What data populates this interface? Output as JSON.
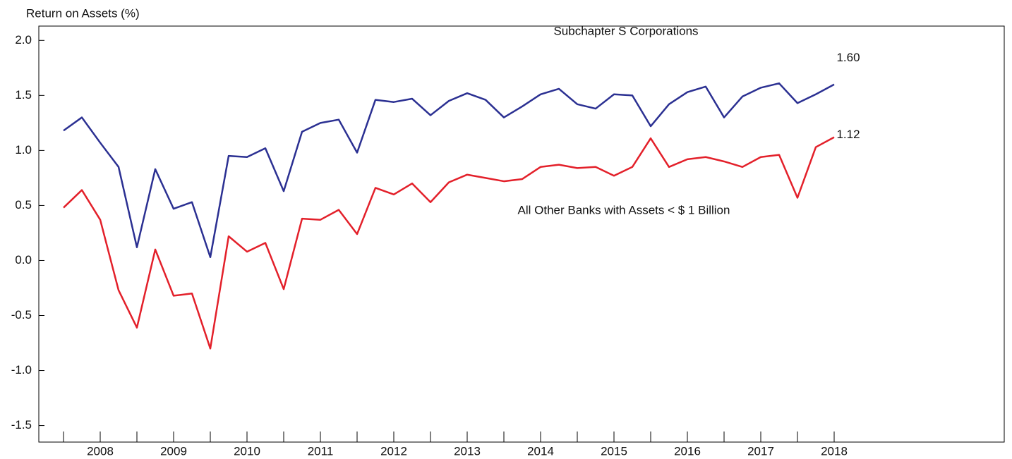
{
  "chart_data": {
    "type": "line",
    "y_axis_label": "Return on Assets (%)",
    "categories": [
      null,
      null,
      "2008",
      null,
      null,
      null,
      "2009",
      null,
      null,
      null,
      "2010",
      null,
      null,
      null,
      "2011",
      null,
      null,
      null,
      "2012",
      null,
      null,
      null,
      "2013",
      null,
      null,
      null,
      "2014",
      null,
      null,
      null,
      "2015",
      null,
      null,
      null,
      "2016",
      null,
      null,
      null,
      "2017",
      null,
      null,
      null,
      "2018"
    ],
    "series": [
      {
        "name": "Subchapter S Corporations",
        "color": "#2b3092",
        "values": [
          1.18,
          1.3,
          1.07,
          0.85,
          0.12,
          0.83,
          0.47,
          0.53,
          0.03,
          0.95,
          0.94,
          1.02,
          0.63,
          1.17,
          1.25,
          1.28,
          0.98,
          1.46,
          1.44,
          1.47,
          1.32,
          1.45,
          1.52,
          1.46,
          1.3,
          1.4,
          1.51,
          1.56,
          1.42,
          1.38,
          1.51,
          1.5,
          1.22,
          1.42,
          1.53,
          1.58,
          1.3,
          1.49,
          1.57,
          1.61,
          1.43,
          1.51,
          1.6
        ],
        "value_labels": [
          null,
          null,
          null,
          null,
          null,
          null,
          null,
          null,
          null,
          null,
          null,
          null,
          null,
          null,
          null,
          null,
          null,
          null,
          null,
          null,
          null,
          null,
          null,
          null,
          null,
          null,
          null,
          null,
          null,
          null,
          null,
          null,
          null,
          null,
          null,
          null,
          null,
          null,
          null,
          null,
          null,
          null,
          "1.60"
        ]
      },
      {
        "name": "All Other Banks with Assets < $ 1 Billion",
        "color": "#e3202a",
        "values": [
          0.48,
          0.64,
          0.37,
          -0.27,
          -0.61,
          0.1,
          -0.32,
          -0.3,
          -0.8,
          0.22,
          0.08,
          0.16,
          -0.26,
          0.38,
          0.37,
          0.46,
          0.24,
          0.66,
          0.6,
          0.7,
          0.53,
          0.71,
          0.78,
          0.75,
          0.72,
          0.74,
          0.85,
          0.87,
          0.84,
          0.85,
          0.77,
          0.85,
          1.11,
          0.85,
          0.92,
          0.94,
          0.9,
          0.85,
          0.94,
          0.96,
          0.57,
          1.03,
          1.12
        ],
        "value_labels": [
          null,
          null,
          null,
          null,
          null,
          null,
          null,
          null,
          null,
          null,
          null,
          null,
          null,
          null,
          null,
          null,
          null,
          null,
          null,
          null,
          null,
          null,
          null,
          null,
          null,
          null,
          null,
          null,
          null,
          null,
          null,
          null,
          null,
          null,
          null,
          null,
          null,
          null,
          null,
          null,
          null,
          null,
          "1.12"
        ]
      }
    ],
    "ylim": [
      -1.65,
      2.13
    ],
    "yticks": [
      {
        "value": 2,
        "label": "2.0"
      },
      1.5,
      {
        "value": 1,
        "label": "1.0"
      },
      0.5,
      {
        "value": 0,
        "label": "0.0"
      },
      -0.5,
      {
        "value": -1,
        "label": "-1.0"
      },
      -1.5
    ]
  }
}
